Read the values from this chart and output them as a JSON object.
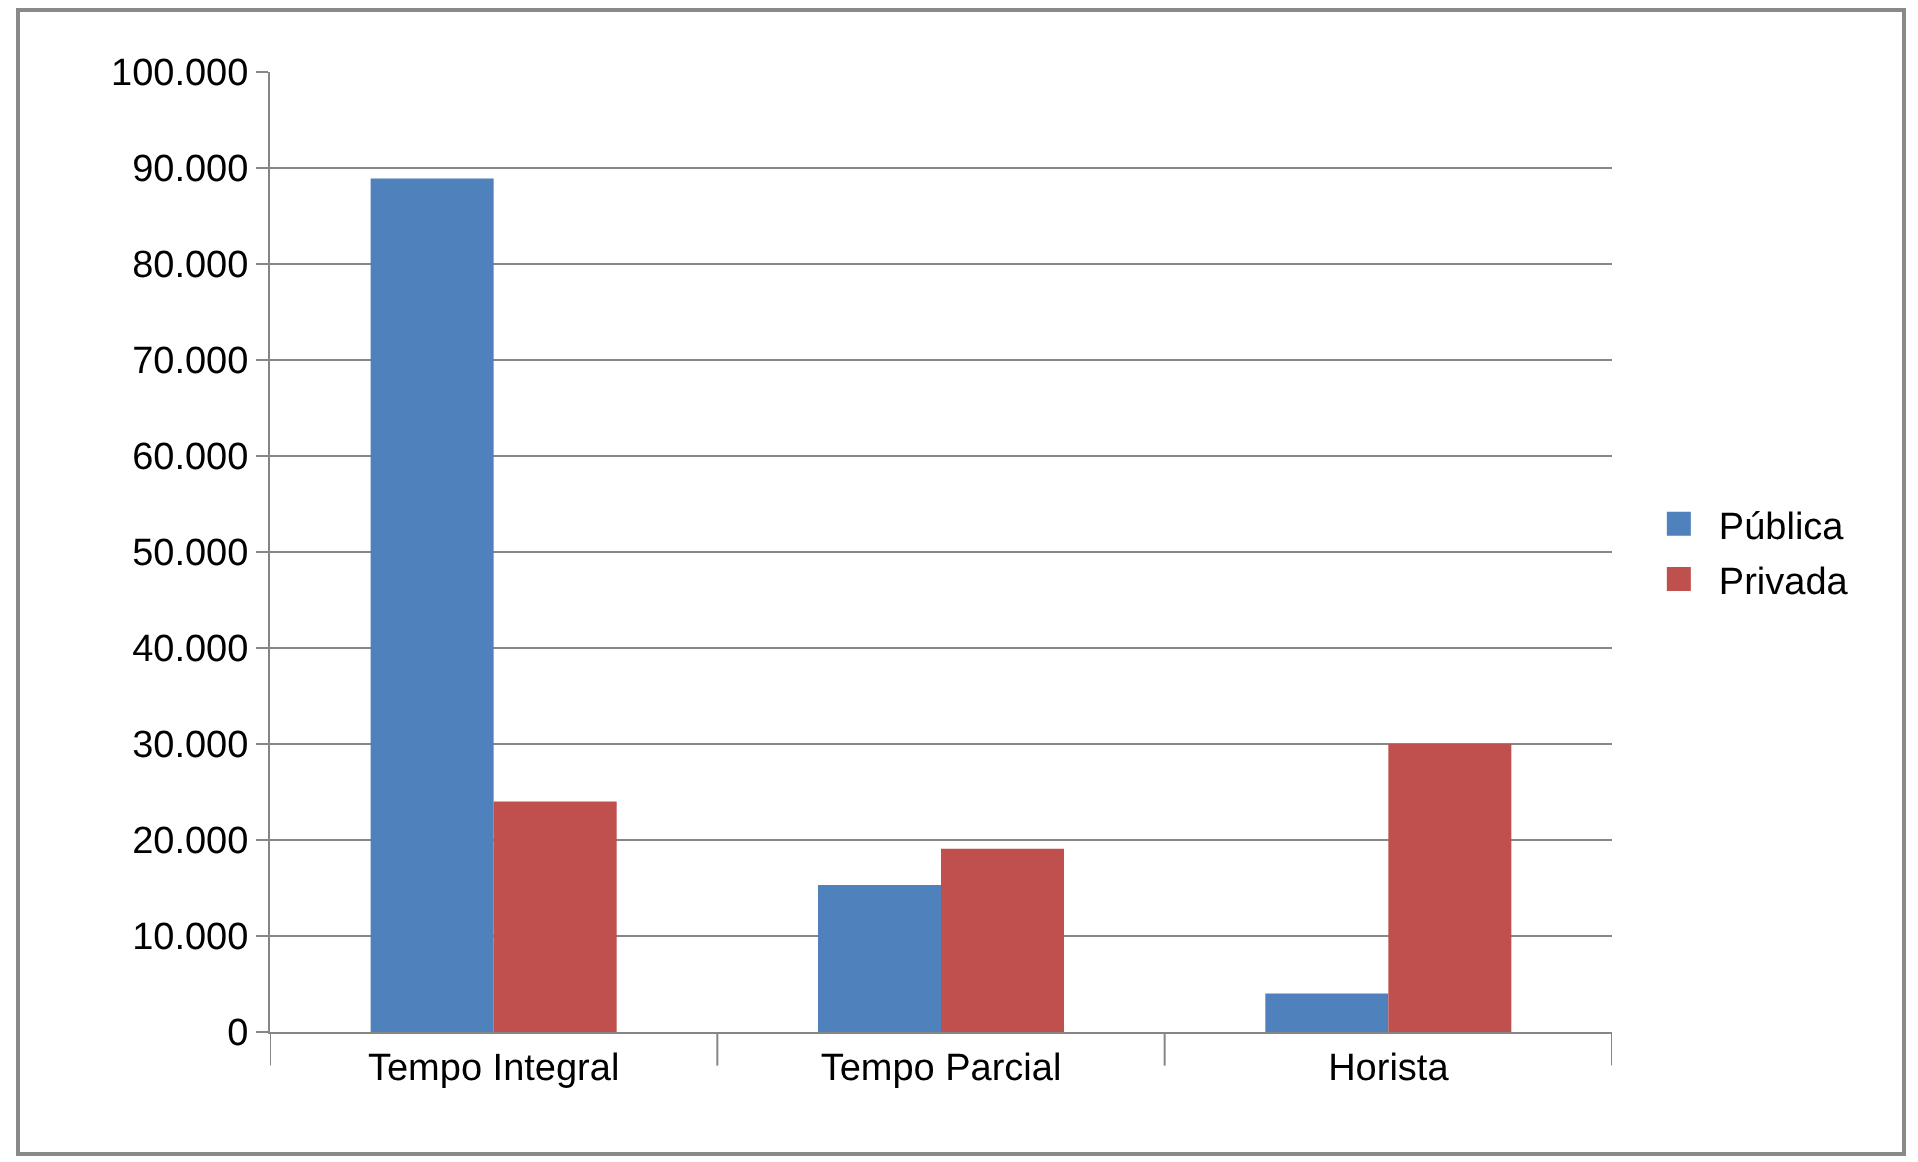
{
  "chart_data": {
    "type": "bar",
    "categories": [
      "Tempo Integral",
      "Tempo Parcial",
      "Horista"
    ],
    "series": [
      {
        "name": "Pública",
        "color": "#4f81bd",
        "values": [
          88900,
          15300,
          4000
        ]
      },
      {
        "name": "Privada",
        "color": "#c0504d",
        "values": [
          24000,
          19100,
          30000
        ]
      }
    ],
    "ylim": [
      0,
      100000
    ],
    "yticks": [
      0,
      {
        "value": 10000,
        "label": "10.000"
      },
      {
        "value": 20000,
        "label": "20.000"
      },
      {
        "value": 30000,
        "label": "30.000"
      },
      {
        "value": 40000,
        "label": "40.000"
      },
      {
        "value": 50000,
        "label": "50.000"
      },
      {
        "value": 60000,
        "label": "60.000"
      },
      {
        "value": 70000,
        "label": "70.000"
      },
      {
        "value": 80000,
        "label": "80.000"
      },
      {
        "value": 90000,
        "label": "90.000"
      },
      {
        "value": 100000,
        "label": "100.000"
      }
    ],
    "grid": "y",
    "legend": "right"
  }
}
